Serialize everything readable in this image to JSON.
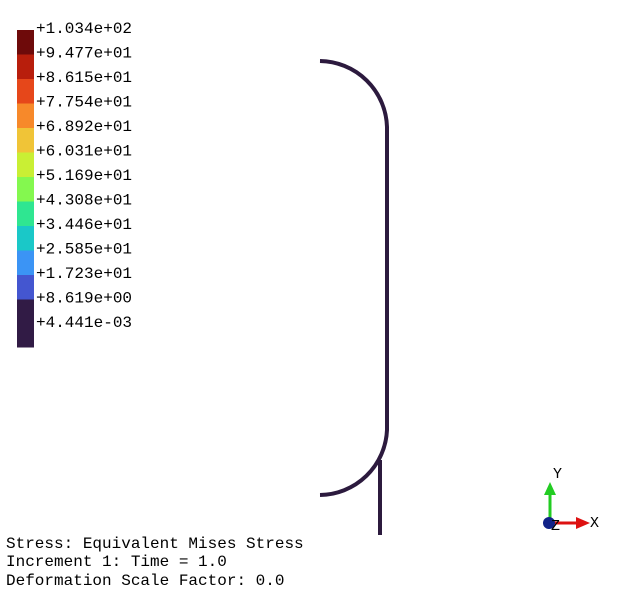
{
  "legend": {
    "levels": [
      {
        "label": "+1.034e+02",
        "color": "#6e0a0a"
      },
      {
        "label": "+9.477e+01",
        "color": "#b81e0c"
      },
      {
        "label": "+8.615e+01",
        "color": "#e6471a"
      },
      {
        "label": "+7.754e+01",
        "color": "#f7892a"
      },
      {
        "label": "+6.892e+01",
        "color": "#f0c437"
      },
      {
        "label": "+6.031e+01",
        "color": "#c9ef34"
      },
      {
        "label": "+5.169e+01",
        "color": "#84f84f"
      },
      {
        "label": "+4.308e+01",
        "color": "#2fe691"
      },
      {
        "label": "+3.446e+01",
        "color": "#1ac8c8"
      },
      {
        "label": "+2.585e+01",
        "color": "#3b94f5"
      },
      {
        "label": "+1.723e+01",
        "color": "#4456d0"
      },
      {
        "label": "+8.619e+00",
        "color": "#311b45"
      },
      {
        "label": "+4.441e-03",
        "color": "#311b45"
      }
    ]
  },
  "model": {
    "stroke_color": "#2c1a3e"
  },
  "triad": {
    "y_label": "Y",
    "x_label": "X",
    "z_label": "Z",
    "y_color": "#22cc22",
    "x_color": "#dd1111",
    "z_color": "#112288"
  },
  "info": {
    "line1": "Stress: Equivalent Mises Stress",
    "line2": "Increment 1: Time = 1.0",
    "line3": "Deformation Scale Factor: 0.0"
  }
}
